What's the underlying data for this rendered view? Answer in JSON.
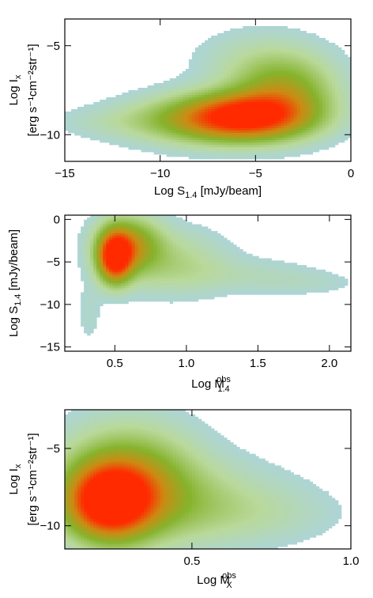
{
  "palette": {
    "low": "#a9d3ec",
    "mid_low": "#b9d99a",
    "mid": "#86b32c",
    "mid_high": "#cd8a12",
    "high": "#ff2a00"
  },
  "chart_data": [
    {
      "type": "heatmap",
      "title": "",
      "xlabel": "Log S",
      "xlabel_sub": "1.4",
      "xlabel_suffix": " [mJy/beam]",
      "ylabel_line1": "Log I",
      "ylabel_line1_sub": "x",
      "ylabel_line2": "[erg s⁻¹cm⁻²str⁻¹]",
      "xlim": [
        -15,
        0
      ],
      "ylim": [
        -11.5,
        -3.5
      ],
      "xticks": [
        -15,
        -10,
        -5,
        0
      ],
      "xtick_labels": [
        "−15",
        "−10",
        "−5",
        "0"
      ],
      "yticks": [
        -10,
        -5
      ],
      "ytick_labels": [
        "−10",
        "−5"
      ],
      "grid": false,
      "density_blobs": [
        {
          "x": -5.5,
          "y": -9.0,
          "sx": 2.3,
          "sy": 0.9,
          "w": 1.0
        },
        {
          "x": -3.5,
          "y": -7.5,
          "sx": 1.8,
          "sy": 1.3,
          "w": 0.45
        },
        {
          "x": -8.5,
          "y": -9.2,
          "sx": 2.5,
          "sy": 0.9,
          "w": 0.28
        },
        {
          "x": -12.5,
          "y": -9.3,
          "sx": 2.2,
          "sy": 0.6,
          "w": 0.07
        },
        {
          "x": -5.0,
          "y": -5.8,
          "sx": 2.2,
          "sy": 1.2,
          "w": 0.1
        }
      ]
    },
    {
      "type": "heatmap",
      "title": "",
      "xlabel": "Log M",
      "xlabel_sub": "1.4",
      "xlabel_sup": "obs",
      "xlabel_suffix": "",
      "ylabel_line1": "Log S",
      "ylabel_line1_sub": "1.4",
      "ylabel_line1_suffix": " [mJy/beam]",
      "xlim": [
        0.15,
        2.15
      ],
      "ylim": [
        -15.5,
        0.5
      ],
      "xticks": [
        0.5,
        1.0,
        1.5,
        2.0
      ],
      "xtick_labels": [
        "0.5",
        "1.0",
        "1.5",
        "2.0"
      ],
      "yticks": [
        -15,
        -10,
        -5,
        0
      ],
      "ytick_labels": [
        "−15",
        "−10",
        "−5",
        "0"
      ],
      "grid": false,
      "density_blobs": [
        {
          "x": 0.5,
          "y": -4.5,
          "sx": 0.08,
          "sy": 2.0,
          "w": 1.0
        },
        {
          "x": 0.6,
          "y": -3.0,
          "sx": 0.15,
          "sy": 2.2,
          "w": 0.55
        },
        {
          "x": 0.9,
          "y": -5.0,
          "sx": 0.25,
          "sy": 2.5,
          "w": 0.2
        },
        {
          "x": 1.4,
          "y": -6.5,
          "sx": 0.35,
          "sy": 1.4,
          "w": 0.08
        },
        {
          "x": 1.85,
          "y": -7.5,
          "sx": 0.25,
          "sy": 1.0,
          "w": 0.05
        },
        {
          "x": 0.32,
          "y": -11.0,
          "sx": 0.06,
          "sy": 2.5,
          "w": 0.06
        }
      ]
    },
    {
      "type": "heatmap",
      "title": "",
      "xlabel": "Log M",
      "xlabel_sub": "X",
      "xlabel_sup": "obs",
      "xlabel_suffix": "",
      "ylabel_line1": "Log I",
      "ylabel_line1_sub": "x",
      "ylabel_line2": "[erg s⁻¹cm⁻²str⁻¹]",
      "xlim": [
        0.1,
        1.0
      ],
      "ylim": [
        -11.5,
        -2.5
      ],
      "xticks": [
        0.5,
        1.0
      ],
      "xtick_labels": [
        "0.5",
        "1.0"
      ],
      "yticks": [
        -10,
        -5
      ],
      "ytick_labels": [
        "−10",
        "−5"
      ],
      "grid": false,
      "density_blobs": [
        {
          "x": 0.24,
          "y": -8.5,
          "sx": 0.09,
          "sy": 1.6,
          "w": 1.0
        },
        {
          "x": 0.3,
          "y": -7.0,
          "sx": 0.14,
          "sy": 2.3,
          "w": 0.5
        },
        {
          "x": 0.45,
          "y": -8.5,
          "sx": 0.22,
          "sy": 1.8,
          "w": 0.22
        },
        {
          "x": 0.7,
          "y": -9.3,
          "sx": 0.18,
          "sy": 1.2,
          "w": 0.07
        }
      ]
    }
  ]
}
